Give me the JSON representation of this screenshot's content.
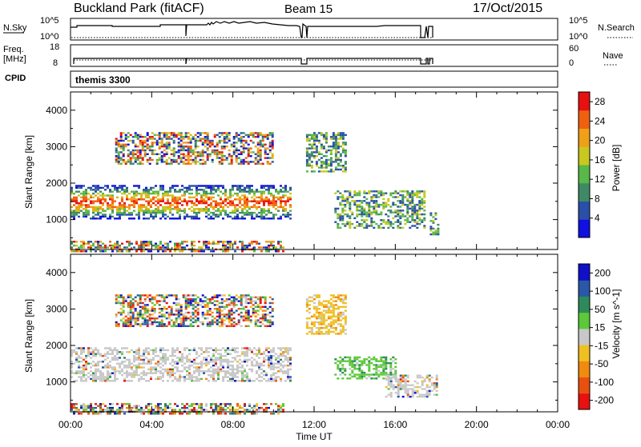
{
  "header": {
    "title": "Buckland Park (fitACF)",
    "beam": "Beam 15",
    "date": "17/Oct/2015"
  },
  "top_panels": {
    "nsky": {
      "label": "N.Sky",
      "ticks": [
        "10^5",
        "10^0"
      ]
    },
    "nsearch": {
      "label": "N.Search",
      "ticks": [
        "10^5",
        "10^0"
      ]
    },
    "freq": {
      "label_line1": "Freq.",
      "label_line2": "[MHz]",
      "ticks": [
        "18",
        "8"
      ]
    },
    "nave": {
      "label": "Nave",
      "ticks": [
        "60",
        "0"
      ]
    },
    "cpid": {
      "label": "CPID",
      "value": "themis 3300"
    }
  },
  "chart_data": [
    {
      "type": "heatmap",
      "title": "",
      "xlabel": "Time UT",
      "ylabel": "Slant Range [km]",
      "x_ticks": [
        "00:00",
        "04:00",
        "08:00",
        "12:00",
        "16:00",
        "20:00",
        "00:00"
      ],
      "xlim": [
        0,
        24
      ],
      "y_ticks": [
        1000,
        2000,
        3000,
        4000
      ],
      "ylim": [
        180,
        4500
      ],
      "colorbar": {
        "label": "Power [dB]",
        "ticks": [
          "4",
          "8",
          "12",
          "16",
          "20",
          "24",
          "28"
        ],
        "range": [
          0,
          30
        ],
        "colors": [
          "#1010e0",
          "#2a4fa8",
          "#3f8a66",
          "#58b848",
          "#c8c81e",
          "#f0a018",
          "#f06010",
          "#e81010"
        ]
      },
      "bands": [
        {
          "x": [
            0.0,
            10.5
          ],
          "y": [
            120,
            420
          ],
          "level": "mixed"
        },
        {
          "x": [
            0.0,
            10.8
          ],
          "y": [
            1050,
            1950
          ],
          "level": "high"
        },
        {
          "x": [
            2.2,
            10.0
          ],
          "y": [
            2550,
            3400
          ],
          "level": "mixed"
        },
        {
          "x": [
            11.6,
            13.6
          ],
          "y": [
            2300,
            3400
          ],
          "level": "mid"
        },
        {
          "x": [
            13.0,
            17.5
          ],
          "y": [
            800,
            1800
          ],
          "level": "mid"
        },
        {
          "x": [
            17.7,
            18.1
          ],
          "y": [
            600,
            1200
          ],
          "level": "mid"
        }
      ]
    },
    {
      "type": "heatmap",
      "title": "",
      "xlabel": "Time UT",
      "ylabel": "Slant Range [km]",
      "x_ticks": [
        "00:00",
        "04:00",
        "08:00",
        "12:00",
        "16:00",
        "20:00",
        "00:00"
      ],
      "xlim": [
        0,
        24
      ],
      "y_ticks": [
        1000,
        2000,
        3000,
        4000
      ],
      "ylim": [
        180,
        4500
      ],
      "colorbar": {
        "label": "Velocity [m s^-1]",
        "ticks": [
          "200",
          "100",
          "50",
          "15",
          "-15",
          "-50",
          "-100",
          "-200"
        ],
        "range": [
          -250,
          250
        ],
        "colors": [
          "#1010c8",
          "#2a58a8",
          "#2e8a5a",
          "#5cc83a",
          "#c8c8c8",
          "#f0c020",
          "#f08a10",
          "#e85010",
          "#e81010"
        ]
      },
      "bands": [
        {
          "x": [
            0.0,
            10.5
          ],
          "y": [
            120,
            420
          ],
          "level": "mixed"
        },
        {
          "x": [
            0.0,
            10.8
          ],
          "y": [
            1050,
            1950
          ],
          "level": "grey"
        },
        {
          "x": [
            2.2,
            10.0
          ],
          "y": [
            2550,
            3400
          ],
          "level": "mixed"
        },
        {
          "x": [
            11.6,
            13.6
          ],
          "y": [
            2300,
            3400
          ],
          "level": "neg"
        },
        {
          "x": [
            13.0,
            16.0
          ],
          "y": [
            1100,
            1700
          ],
          "level": "pos"
        },
        {
          "x": [
            15.5,
            18.1
          ],
          "y": [
            600,
            1200
          ],
          "level": "grey"
        }
      ]
    }
  ]
}
